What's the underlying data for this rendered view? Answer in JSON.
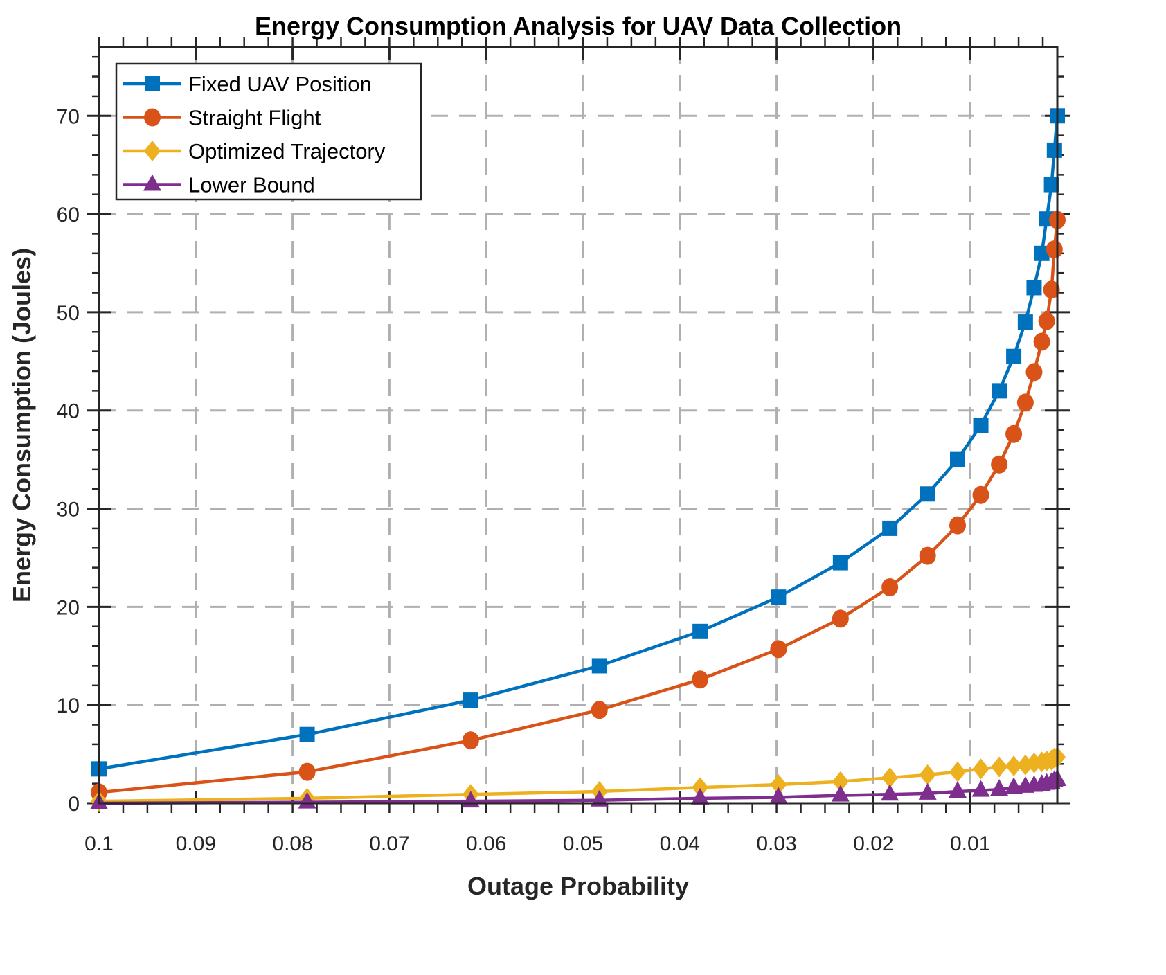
{
  "chart_data": {
    "type": "line",
    "title": "Energy Consumption Analysis for UAV Data Collection",
    "xlabel": "Outage Probability",
    "ylabel": "Energy Consumption (Joules)",
    "xlim": [
      0.001,
      0.1
    ],
    "x_reversed": true,
    "ylim": [
      0,
      77
    ],
    "grid": true,
    "legend_position": "top-left",
    "xticks": [
      0.1,
      0.09,
      0.08,
      0.07,
      0.06,
      0.05,
      0.04,
      0.03,
      0.02,
      0.01
    ],
    "xtick_labels": [
      "0.1",
      "0.09",
      "0.08",
      "0.07",
      "0.06",
      "0.05",
      "0.04",
      "0.03",
      "0.02",
      "0.01"
    ],
    "yticks": [
      0,
      10,
      20,
      30,
      40,
      50,
      60,
      70
    ],
    "ytick_labels": [
      "0",
      "10",
      "20",
      "30",
      "40",
      "50",
      "60",
      "70"
    ],
    "x": [
      0.1,
      0.0785,
      0.0616,
      0.0483,
      0.0379,
      0.0298,
      0.0234,
      0.0183,
      0.0144,
      0.0113,
      0.0089,
      0.007,
      0.0055,
      0.0043,
      0.0034,
      0.0026,
      0.0021,
      0.0016,
      0.0013,
      0.001
    ],
    "series": [
      {
        "name": "Fixed UAV Position",
        "color": "#0072BD",
        "marker": "square",
        "values": [
          3.5,
          7.0,
          10.5,
          14.0,
          17.5,
          21.0,
          24.5,
          28.0,
          31.5,
          35.0,
          38.5,
          42.0,
          45.5,
          49.0,
          52.5,
          56.0,
          59.5,
          63.0,
          66.5,
          70.0
        ]
      },
      {
        "name": "Straight Flight",
        "color": "#D95319",
        "marker": "circle",
        "values": [
          1.1,
          3.2,
          6.4,
          9.5,
          12.6,
          15.7,
          18.8,
          22.0,
          25.2,
          28.3,
          31.4,
          34.5,
          37.6,
          40.8,
          43.9,
          47.0,
          49.1,
          52.3,
          56.4,
          59.4
        ]
      },
      {
        "name": "Optimized Trajectory",
        "color": "#EDB120",
        "marker": "diamond",
        "values": [
          0.2,
          0.5,
          0.9,
          1.2,
          1.6,
          1.9,
          2.2,
          2.6,
          2.9,
          3.2,
          3.5,
          3.7,
          3.8,
          3.9,
          4.1,
          4.2,
          4.3,
          4.4,
          4.6,
          4.7
        ]
      },
      {
        "name": "Lower Bound",
        "color": "#7E2F8E",
        "marker": "triangle",
        "values": [
          0.0,
          0.1,
          0.2,
          0.3,
          0.5,
          0.6,
          0.8,
          0.9,
          1.0,
          1.2,
          1.3,
          1.4,
          1.6,
          1.7,
          1.8,
          1.9,
          2.0,
          2.1,
          2.3,
          2.4
        ]
      }
    ]
  }
}
